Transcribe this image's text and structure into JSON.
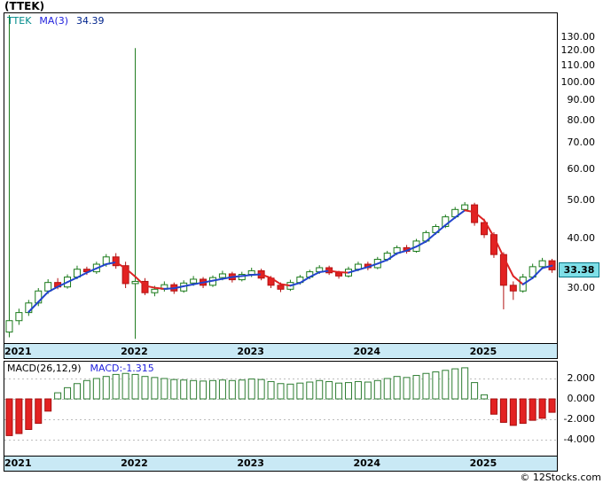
{
  "title": "(TTEK)",
  "watermark": "© 12Stocks.com",
  "main_chart": {
    "legend": {
      "symbol": "TTEK",
      "ma_label": "MA(3)",
      "ma_value": "34.39"
    },
    "price_label": "33.38",
    "y_axis_labels": [
      "130.00",
      "120.00",
      "110.00",
      "100.00",
      "90.00",
      "80.00",
      "70.00",
      "60.00",
      "50.00",
      "40.00",
      "30.00"
    ],
    "x_axis_labels": [
      "2021",
      "2022",
      "2023",
      "2024",
      "2025"
    ]
  },
  "macd_panel": {
    "legend": {
      "label": "MACD(26,12,9)",
      "value": "MACD:-1.315"
    },
    "y_axis_labels": [
      "2.000",
      "0.000",
      "-2.000",
      "-4.000"
    ],
    "x_axis_labels": [
      "2021",
      "2022",
      "2023",
      "2024",
      "2025"
    ]
  },
  "colors": {
    "axis_band": "#c9e9f5",
    "price_tag_bg": "#7fdfe8",
    "up_green": "#1a7a1a",
    "down_red": "#e32222",
    "ma_blue": "#2244cc",
    "ma_red": "#dd2222",
    "legend_teal": "#008b8b",
    "legend_blue": "#2222dd"
  },
  "chart_data": [
    {
      "type": "candlestick",
      "symbol": "TTEK",
      "interval": "monthly",
      "start": "2021-01",
      "y_scale": "log",
      "y_ticks": [
        130,
        120,
        110,
        100,
        90,
        80,
        70,
        60,
        50,
        40,
        30
      ],
      "year_tick_indices": [
        0,
        12,
        24,
        36,
        48
      ],
      "ma_period": 3,
      "ma_current": 34.39,
      "last_close": 33.38,
      "colors": {
        "up_stroke": "#1a7a1a",
        "up_fill": "#ffffff",
        "down_stroke": "#b31212",
        "down_fill": "#e32222",
        "ma_up": "#2244cc",
        "ma_down": "#dd2222"
      },
      "ohlc": [
        [
          23.2,
          148.0,
          22.5,
          24.8
        ],
        [
          24.8,
          26.6,
          24.2,
          26.0
        ],
        [
          26.0,
          28.0,
          25.5,
          27.5
        ],
        [
          27.5,
          30.0,
          27.0,
          29.5
        ],
        [
          29.5,
          31.6,
          29.0,
          31.0
        ],
        [
          31.0,
          31.8,
          29.8,
          30.2
        ],
        [
          30.2,
          32.5,
          29.9,
          32.0
        ],
        [
          32.0,
          34.2,
          31.6,
          33.5
        ],
        [
          33.5,
          34.0,
          32.4,
          33.0
        ],
        [
          33.0,
          35.0,
          32.6,
          34.5
        ],
        [
          34.5,
          36.6,
          34.0,
          36.0
        ],
        [
          36.0,
          36.8,
          33.6,
          34.2
        ],
        [
          34.2,
          35.0,
          30.0,
          30.8
        ],
        [
          30.8,
          122.0,
          22.3,
          31.2
        ],
        [
          31.2,
          31.8,
          28.8,
          29.2
        ],
        [
          29.2,
          30.4,
          28.6,
          29.8
        ],
        [
          29.8,
          31.2,
          29.4,
          30.6
        ],
        [
          30.6,
          31.0,
          29.0,
          29.5
        ],
        [
          29.5,
          31.4,
          29.2,
          30.9
        ],
        [
          30.9,
          32.2,
          30.4,
          31.6
        ],
        [
          31.6,
          32.0,
          30.0,
          30.5
        ],
        [
          30.5,
          32.3,
          30.2,
          31.9
        ],
        [
          31.9,
          33.2,
          31.4,
          32.6
        ],
        [
          32.6,
          33.0,
          31.0,
          31.5
        ],
        [
          31.5,
          33.0,
          31.2,
          32.5
        ],
        [
          32.5,
          33.8,
          32.0,
          33.2
        ],
        [
          33.2,
          33.6,
          31.4,
          31.8
        ],
        [
          31.8,
          32.2,
          30.0,
          30.5
        ],
        [
          30.5,
          31.0,
          29.3,
          29.8
        ],
        [
          29.8,
          31.5,
          29.5,
          31.0
        ],
        [
          31.0,
          32.4,
          30.6,
          32.0
        ],
        [
          32.0,
          33.4,
          31.6,
          33.0
        ],
        [
          33.0,
          34.3,
          32.6,
          33.8
        ],
        [
          33.8,
          34.2,
          32.4,
          32.8
        ],
        [
          32.8,
          33.2,
          31.7,
          32.2
        ],
        [
          32.2,
          34.0,
          31.9,
          33.5
        ],
        [
          33.5,
          35.0,
          33.1,
          34.5
        ],
        [
          34.5,
          35.0,
          33.3,
          33.8
        ],
        [
          33.8,
          36.0,
          33.5,
          35.5
        ],
        [
          35.5,
          37.3,
          35.1,
          36.8
        ],
        [
          36.8,
          38.5,
          36.4,
          38.0
        ],
        [
          38.0,
          38.6,
          36.7,
          37.2
        ],
        [
          37.2,
          40.0,
          36.9,
          39.5
        ],
        [
          39.5,
          42.0,
          39.1,
          41.5
        ],
        [
          41.5,
          43.6,
          41.0,
          43.0
        ],
        [
          43.0,
          46.1,
          42.6,
          45.5
        ],
        [
          45.5,
          48.2,
          45.0,
          47.5
        ],
        [
          47.5,
          49.6,
          47.0,
          48.8
        ],
        [
          48.8,
          49.4,
          43.2,
          44.0
        ],
        [
          44.0,
          45.0,
          40.2,
          41.0
        ],
        [
          41.0,
          41.6,
          35.8,
          36.5
        ],
        [
          36.5,
          37.0,
          26.5,
          30.5
        ],
        [
          30.5,
          31.2,
          28.0,
          29.5
        ],
        [
          29.5,
          32.6,
          29.2,
          32.0
        ],
        [
          32.0,
          34.6,
          31.6,
          34.0
        ],
        [
          34.0,
          35.8,
          33.5,
          35.2
        ],
        [
          35.2,
          35.6,
          32.8,
          33.38
        ]
      ]
    },
    {
      "type": "bar",
      "label": "MACD(26,12,9)",
      "current": -1.315,
      "y_ticks": [
        2,
        0,
        -2,
        -4
      ],
      "colors": {
        "pos_stroke": "#2e7d32",
        "pos_fill": "#ffffff",
        "neg_stroke": "#a50f0f",
        "neg_fill": "#e32222"
      },
      "values": [
        -3.6,
        -3.4,
        -3.0,
        -2.4,
        -1.2,
        0.6,
        1.1,
        1.5,
        1.8,
        2.0,
        2.2,
        2.4,
        2.5,
        2.4,
        2.2,
        2.1,
        2.0,
        1.9,
        1.85,
        1.8,
        1.75,
        1.8,
        1.85,
        1.8,
        1.85,
        1.95,
        1.9,
        1.7,
        1.5,
        1.45,
        1.55,
        1.65,
        1.8,
        1.7,
        1.55,
        1.6,
        1.7,
        1.65,
        1.8,
        2.0,
        2.2,
        2.1,
        2.3,
        2.5,
        2.65,
        2.8,
        2.95,
        3.05,
        1.6,
        0.4,
        -1.5,
        -2.3,
        -2.6,
        -2.4,
        -2.1,
        -1.9,
        -1.315
      ]
    }
  ]
}
